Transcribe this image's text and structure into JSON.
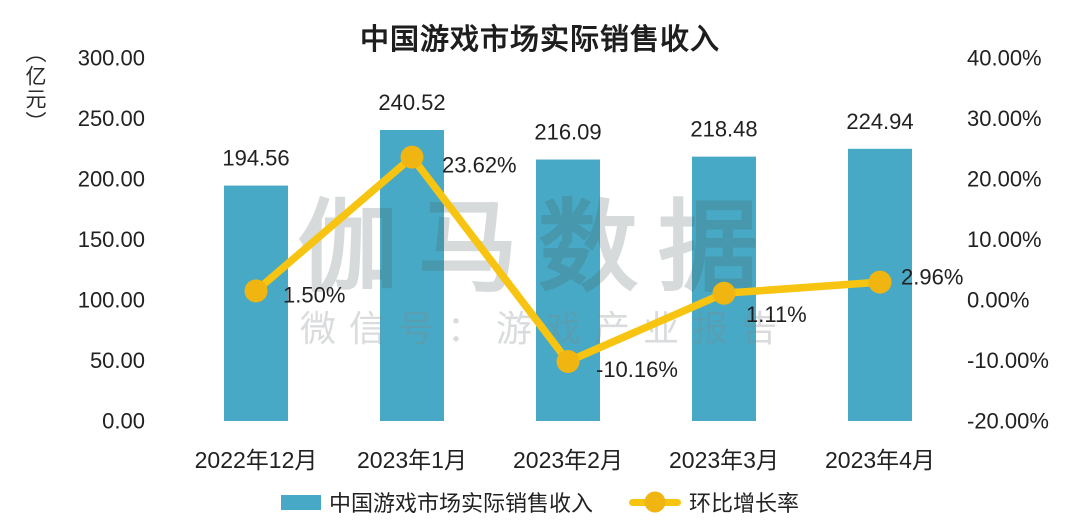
{
  "page": {
    "background": "#ffffff",
    "text_color": "#212121"
  },
  "watermark": {
    "brand": "伽马数据",
    "wechat": "微信号：游戏产业报告",
    "brand_color": "rgba(75,85,90,0.22)",
    "wechat_color": "rgba(130,135,138,0.30)"
  },
  "chart_data": {
    "type": "bar",
    "combo": "bar+line",
    "title": "中国游戏市场实际销售收入",
    "unit_label": "（亿元）",
    "categories": [
      "2022年12月",
      "2023年1月",
      "2023年2月",
      "2023年3月",
      "2023年4月"
    ],
    "series": [
      {
        "name": "中国游戏市场实际销售收入",
        "type": "bar",
        "axis": "left",
        "color": "#47A9C5",
        "values": [
          194.56,
          240.52,
          216.09,
          218.48,
          224.94
        ],
        "labels": [
          "194.56",
          "240.52",
          "216.09",
          "218.48",
          "224.94"
        ]
      },
      {
        "name": "环比增长率",
        "type": "line",
        "axis": "right",
        "color": "#F6C411",
        "marker_color": "#F0B510",
        "values": [
          1.5,
          23.62,
          -10.16,
          1.11,
          2.96
        ],
        "labels": [
          "1.50%",
          "23.62%",
          "-10.16%",
          "1.11%",
          "2.96%"
        ],
        "label_offsets": [
          [
            27,
            4
          ],
          [
            30,
            8
          ],
          [
            28,
            8
          ],
          [
            22,
            21
          ],
          [
            21,
            -5
          ]
        ]
      }
    ],
    "left_axis": {
      "ticks": [
        "300.00",
        "250.00",
        "200.00",
        "150.00",
        "100.00",
        "50.00",
        "0.00"
      ],
      "min": 0,
      "max": 300
    },
    "right_axis": {
      "ticks": [
        "40.00%",
        "30.00%",
        "20.00%",
        "10.00%",
        "0.00%",
        "-10.00%",
        "-20.00%"
      ],
      "min": -20,
      "max": 40
    },
    "grid": false,
    "legend_position": "bottom"
  }
}
